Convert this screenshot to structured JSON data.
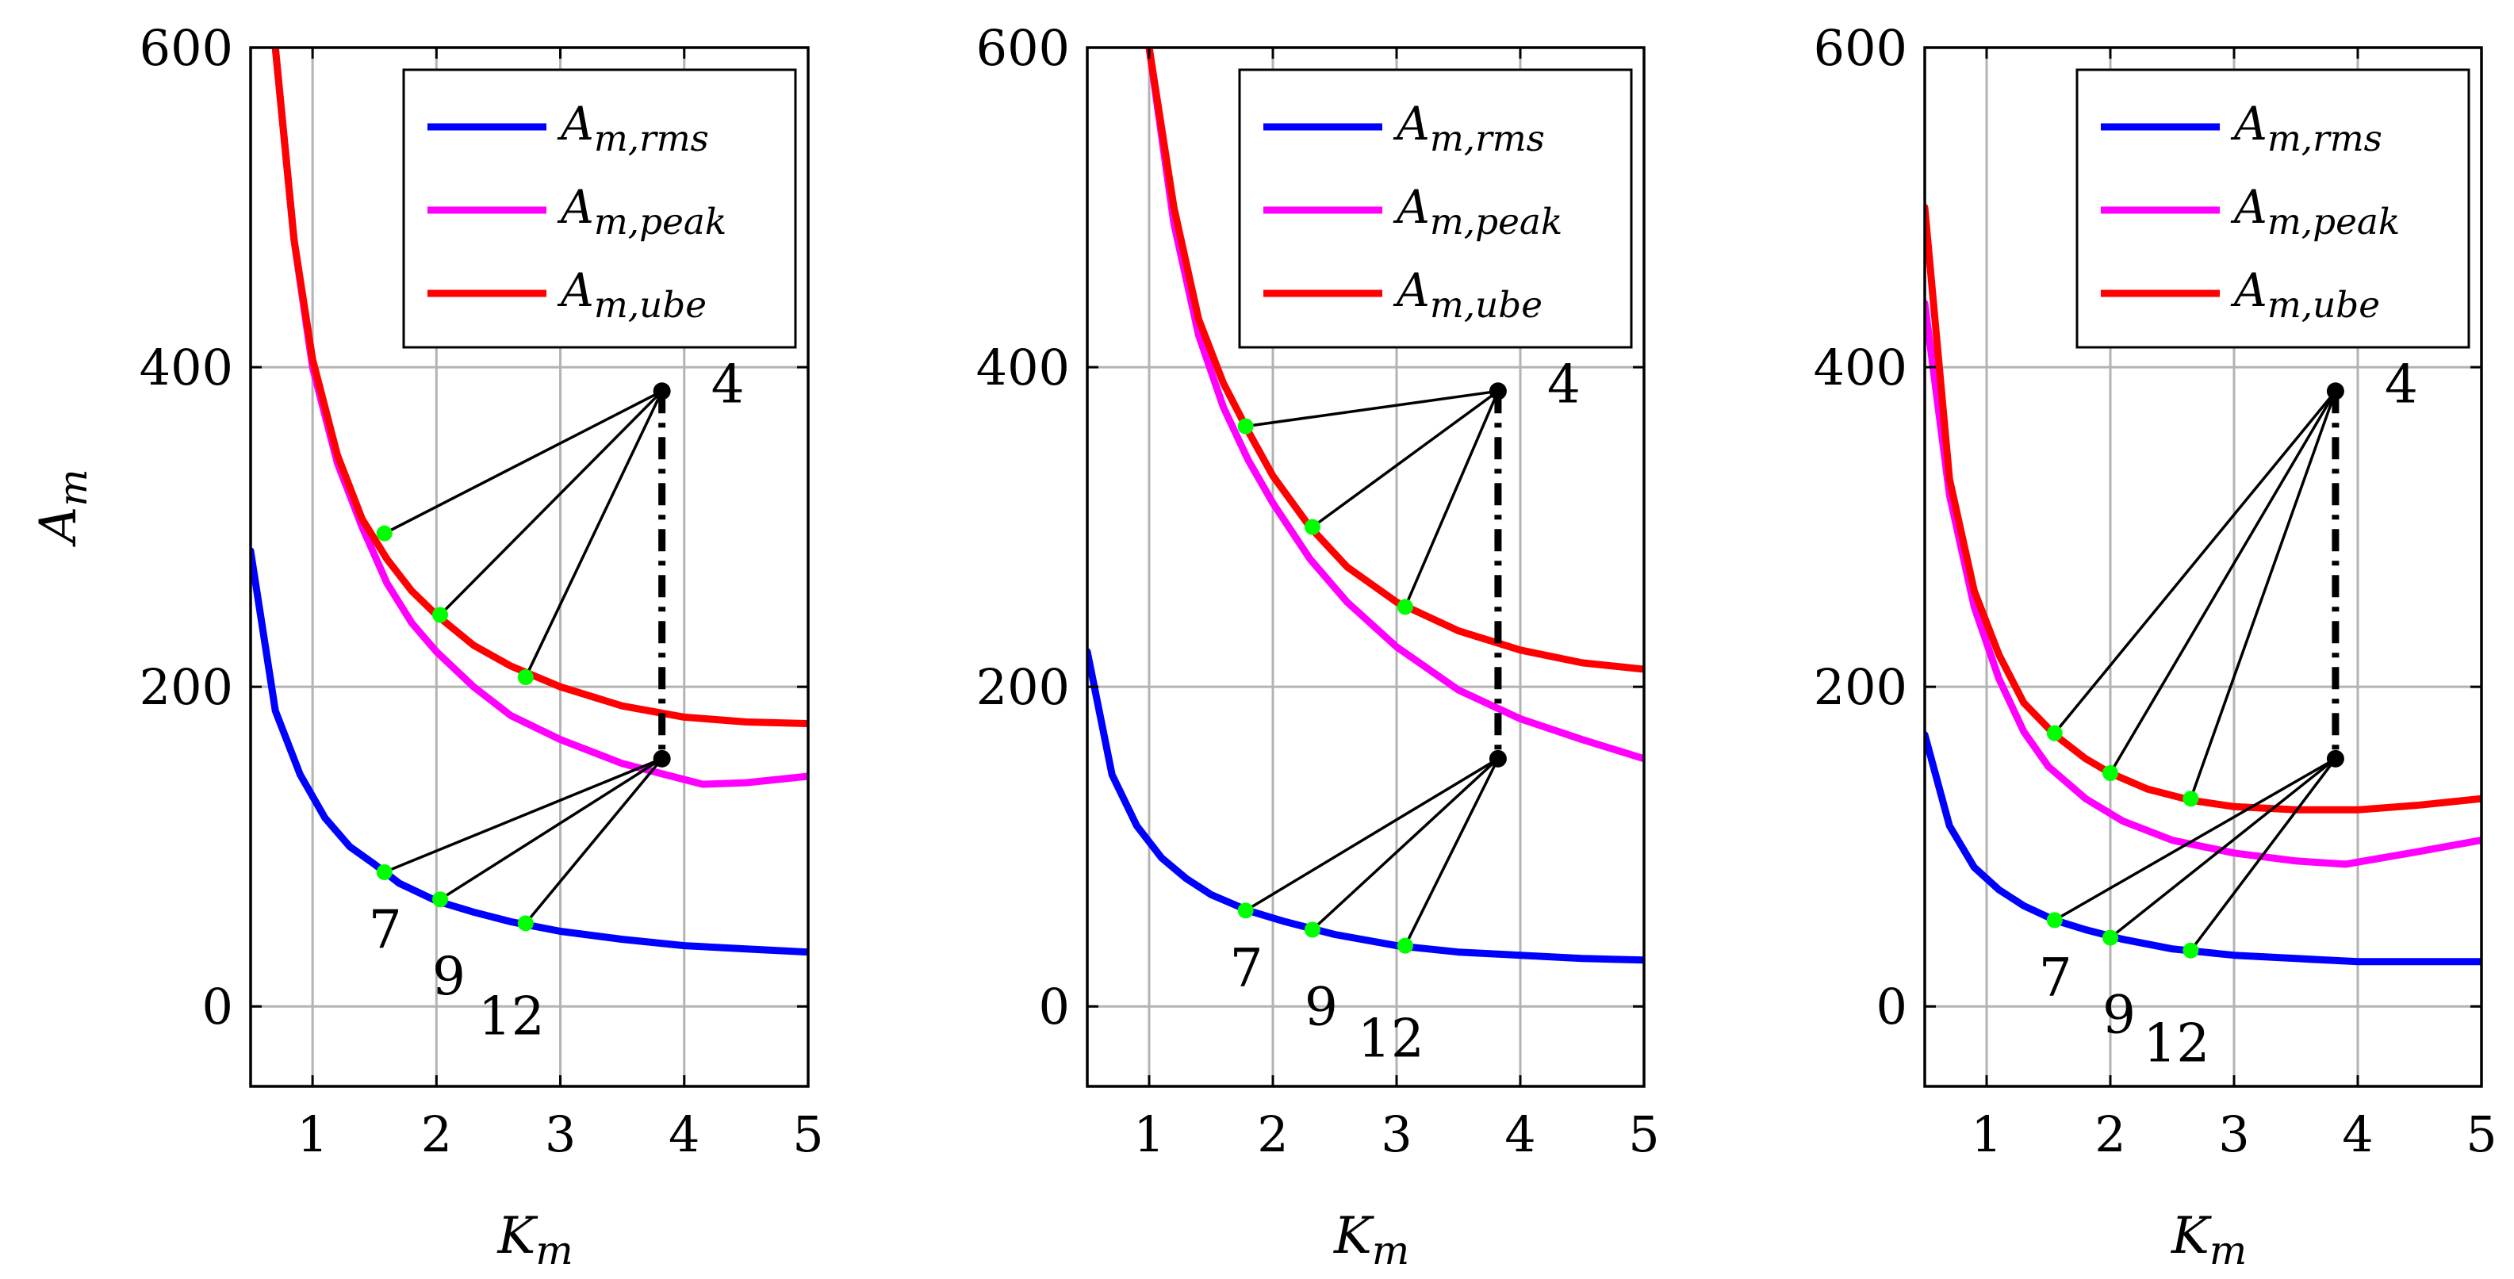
{
  "figure": {
    "legend_placement": "top-right",
    "colors": {
      "rms": "#0000ff",
      "peak": "#ff00ff",
      "ube": "#ff0000",
      "marker": "#00ff00",
      "axis": "#000000",
      "grid": "#b3b3b3"
    }
  },
  "chart_data": [
    {
      "type": "line",
      "title": "",
      "xlabel": "K_m",
      "ylabel": "A_m",
      "xlim": [
        0.5,
        5
      ],
      "ylim": [
        -50,
        600
      ],
      "xticks": [
        "1",
        "2",
        "3",
        "4",
        "5"
      ],
      "yticks": [
        "0",
        "200",
        "400",
        "600"
      ],
      "legend": [
        "A_m,rms",
        "A_m,peak",
        "A_m,ube"
      ],
      "series": [
        {
          "name": "A_m,rms",
          "color": "#0000ff",
          "x": [
            0.5,
            0.7,
            0.9,
            1.1,
            1.3,
            1.5,
            1.7,
            2.0,
            2.3,
            2.6,
            3.0,
            3.5,
            4.0,
            4.5,
            5.0
          ],
          "y": [
            285,
            185,
            145,
            118,
            100,
            89,
            77,
            66,
            59,
            53,
            47,
            42,
            38,
            36,
            34
          ]
        },
        {
          "name": "A_m,peak",
          "color": "#ff00ff",
          "x": [
            0.7,
            0.85,
            1.0,
            1.2,
            1.4,
            1.6,
            1.8,
            2.0,
            2.3,
            2.6,
            3.0,
            3.5,
            3.8,
            4.15,
            4.5,
            5.0
          ],
          "y": [
            600,
            480,
            400,
            340,
            300,
            265,
            240,
            222,
            200,
            182,
            167,
            152,
            146,
            139,
            140,
            144
          ]
        },
        {
          "name": "A_m,ube",
          "color": "#ff0000",
          "x": [
            0.7,
            0.85,
            1.0,
            1.2,
            1.4,
            1.6,
            1.8,
            2.0,
            2.3,
            2.6,
            3.0,
            3.5,
            4.0,
            4.5,
            5.0
          ],
          "y": [
            600,
            480,
            405,
            345,
            305,
            280,
            260,
            245,
            226,
            213,
            200,
            188,
            181,
            178,
            177
          ]
        }
      ],
      "annotation": {
        "label": "4",
        "apex_upper": [
          3.82,
          385
        ],
        "apex_lower": [
          3.82,
          155
        ],
        "upper_points": [
          [
            1.58,
            296
          ],
          [
            2.03,
            245
          ],
          [
            2.72,
            206
          ]
        ],
        "lower_points": [
          [
            1.58,
            84
          ],
          [
            2.03,
            67
          ],
          [
            2.72,
            52
          ]
        ],
        "point_labels": [
          "7",
          "9",
          "12"
        ]
      }
    },
    {
      "type": "line",
      "title": "",
      "xlabel": "K_m",
      "ylabel": "",
      "xlim": [
        0.5,
        5
      ],
      "ylim": [
        -50,
        600
      ],
      "xticks": [
        "1",
        "2",
        "3",
        "4",
        "5"
      ],
      "yticks": [
        "0",
        "200",
        "400",
        "600"
      ],
      "legend": [
        "A_m,rms",
        "A_m,peak",
        "A_m,ube"
      ],
      "series": [
        {
          "name": "A_m,rms",
          "color": "#0000ff",
          "x": [
            0.5,
            0.7,
            0.9,
            1.1,
            1.3,
            1.5,
            1.8,
            2.1,
            2.5,
            3.0,
            3.5,
            4.0,
            4.5,
            5.0
          ],
          "y": [
            222,
            145,
            113,
            93,
            80,
            70,
            60,
            53,
            45,
            38,
            34,
            32,
            30,
            29
          ]
        },
        {
          "name": "A_m,peak",
          "color": "#ff00ff",
          "x": [
            1.0,
            1.2,
            1.4,
            1.6,
            1.8,
            2.0,
            2.3,
            2.6,
            3.0,
            3.5,
            4.0,
            4.5,
            5.0
          ],
          "y": [
            600,
            490,
            420,
            375,
            342,
            315,
            280,
            253,
            225,
            198,
            180,
            167,
            155
          ]
        },
        {
          "name": "A_m,ube",
          "color": "#ff0000",
          "x": [
            1.0,
            1.2,
            1.4,
            1.6,
            1.8,
            2.0,
            2.3,
            2.6,
            3.0,
            3.5,
            4.0,
            4.5,
            5.0
          ],
          "y": [
            600,
            500,
            430,
            390,
            360,
            332,
            300,
            275,
            253,
            235,
            223,
            215,
            211
          ]
        }
      ],
      "annotation": {
        "label": "4",
        "apex_upper": [
          3.82,
          385
        ],
        "apex_lower": [
          3.82,
          155
        ],
        "upper_points": [
          [
            1.78,
            363
          ],
          [
            2.32,
            300
          ],
          [
            3.07,
            250
          ]
        ],
        "lower_points": [
          [
            1.78,
            60
          ],
          [
            2.32,
            48
          ],
          [
            3.07,
            38
          ]
        ],
        "point_labels": [
          "7",
          "9",
          "12"
        ]
      }
    },
    {
      "type": "line",
      "title": "",
      "xlabel": "K_m",
      "ylabel": "",
      "xlim": [
        0.5,
        5
      ],
      "ylim": [
        -50,
        600
      ],
      "xticks": [
        "1",
        "2",
        "3",
        "4",
        "5"
      ],
      "yticks": [
        "0",
        "200",
        "400",
        "600"
      ],
      "legend": [
        "A_m,rms",
        "A_m,peak",
        "A_m,ube"
      ],
      "series": [
        {
          "name": "A_m,rms",
          "color": "#0000ff",
          "x": [
            0.5,
            0.7,
            0.9,
            1.1,
            1.3,
            1.55,
            1.8,
            2.1,
            2.5,
            3.0,
            3.5,
            4.0,
            4.5,
            5.0
          ],
          "y": [
            170,
            113,
            87,
            73,
            63,
            54,
            48,
            42,
            36,
            32,
            30,
            28,
            28,
            28
          ]
        },
        {
          "name": "A_m,peak",
          "color": "#ff00ff",
          "x": [
            0.5,
            0.7,
            0.9,
            1.1,
            1.3,
            1.5,
            1.8,
            2.1,
            2.5,
            3.0,
            3.5,
            3.9,
            4.5,
            5.0
          ],
          "y": [
            440,
            320,
            250,
            205,
            172,
            150,
            130,
            116,
            104,
            96,
            91,
            89,
            97,
            104
          ]
        },
        {
          "name": "A_m,ube",
          "color": "#ff0000",
          "x": [
            0.5,
            0.7,
            0.9,
            1.1,
            1.3,
            1.55,
            1.8,
            2.0,
            2.3,
            2.65,
            3.0,
            3.5,
            4.0,
            4.5,
            5.0
          ],
          "y": [
            500,
            330,
            260,
            220,
            190,
            170,
            155,
            146,
            136,
            129,
            125,
            123,
            123,
            126,
            130
          ]
        }
      ],
      "annotation": {
        "label": "4",
        "apex_upper": [
          3.82,
          385
        ],
        "apex_lower": [
          3.82,
          155
        ],
        "upper_points": [
          [
            1.55,
            171
          ],
          [
            2.0,
            146
          ],
          [
            2.65,
            130
          ]
        ],
        "lower_points": [
          [
            1.55,
            54
          ],
          [
            2.0,
            43
          ],
          [
            2.65,
            35
          ]
        ],
        "point_labels": [
          "7",
          "9",
          "12"
        ]
      }
    }
  ]
}
